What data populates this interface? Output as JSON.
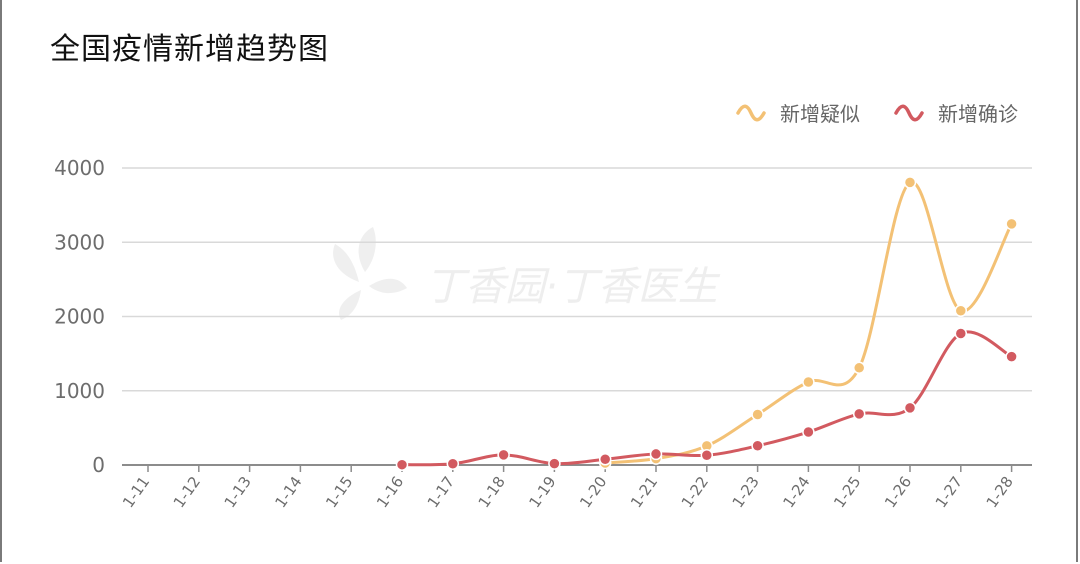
{
  "title": "全国疫情新增趋势图",
  "watermark": "丁香园·丁香医生",
  "colors": {
    "suspected": "#f3c175",
    "confirmed": "#d25a60",
    "grid": "#d9d9d9",
    "axis": "#8c8c8c"
  },
  "chart_data": {
    "type": "line",
    "title": "全国疫情新增趋势图",
    "categories": [
      "1-11",
      "1-12",
      "1-13",
      "1-14",
      "1-15",
      "1-16",
      "1-17",
      "1-18",
      "1-19",
      "1-20",
      "1-21",
      "1-22",
      "1-23",
      "1-24",
      "1-25",
      "1-26",
      "1-27",
      "1-28"
    ],
    "ylim": [
      0,
      4000
    ],
    "yticks": [
      0,
      1000,
      2000,
      3000,
      4000
    ],
    "grid": true,
    "legend_position": "top-right",
    "smooth": true,
    "series": [
      {
        "name": "新增疑似",
        "color": "#f3c175",
        "values": [
          null,
          null,
          null,
          null,
          null,
          null,
          null,
          null,
          null,
          27,
          86,
          257,
          680,
          1118,
          1309,
          3806,
          2077,
          3248
        ]
      },
      {
        "name": "新增确诊",
        "color": "#d25a60",
        "values": [
          null,
          null,
          null,
          null,
          null,
          4,
          17,
          136,
          19,
          77,
          149,
          131,
          259,
          444,
          688,
          769,
          1771,
          1459
        ]
      }
    ]
  }
}
